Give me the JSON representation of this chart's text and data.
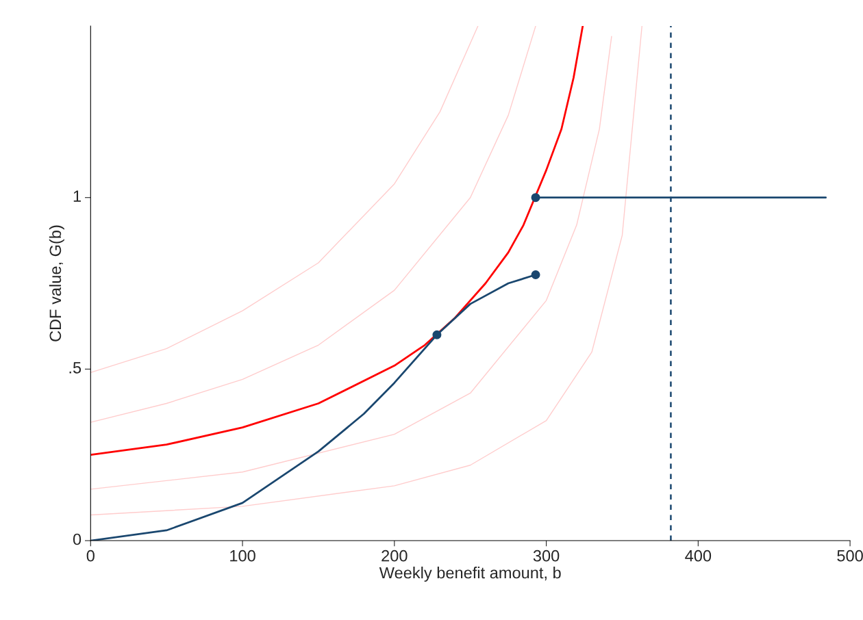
{
  "chart_data": {
    "type": "line",
    "xlabel": "Weekly benefit amount, b",
    "ylabel": "CDF value, G(b)",
    "xlim": [
      0,
      500
    ],
    "ylim": [
      0,
      1.5
    ],
    "xticks": [
      0,
      100,
      200,
      300,
      400,
      500
    ],
    "yticks": [
      0,
      {
        "value": 0.5,
        "label": ".5"
      },
      1
    ],
    "grid": false,
    "legend": false,
    "series": [
      {
        "color": "#ffcccc",
        "x": [
          0,
          50,
          100,
          150,
          200,
          230,
          255
        ],
        "values": [
          0.49,
          0.56,
          0.67,
          0.81,
          1.04,
          1.25,
          1.5
        ]
      },
      {
        "color": "#ffcccc",
        "x": [
          0,
          50,
          100,
          150,
          200,
          250,
          275,
          293
        ],
        "values": [
          0.345,
          0.4,
          0.47,
          0.57,
          0.73,
          1.0,
          1.24,
          1.5
        ]
      },
      {
        "color": "#ffcccc",
        "x": [
          0,
          100,
          200,
          250,
          300,
          320,
          335,
          343
        ],
        "values": [
          0.15,
          0.2,
          0.31,
          0.43,
          0.7,
          0.92,
          1.2,
          1.47
        ]
      },
      {
        "color": "#ffcccc",
        "x": [
          0,
          100,
          200,
          250,
          300,
          330,
          350,
          363
        ],
        "values": [
          0.075,
          0.1,
          0.16,
          0.22,
          0.35,
          0.55,
          0.89,
          1.5
        ]
      },
      {
        "color": "#ff0000",
        "x": [
          0,
          50,
          100,
          150,
          200,
          220,
          240,
          260,
          275,
          285,
          300,
          310,
          318,
          324
        ],
        "values": [
          0.25,
          0.28,
          0.33,
          0.4,
          0.51,
          0.57,
          0.65,
          0.75,
          0.84,
          0.92,
          1.08,
          1.2,
          1.35,
          1.5
        ]
      },
      {
        "color": "#1a476f",
        "x": [
          0,
          50,
          100,
          150,
          180,
          200,
          228,
          250,
          275,
          293
        ],
        "values": [
          0,
          0.03,
          0.11,
          0.26,
          0.37,
          0.46,
          0.6,
          0.69,
          0.75,
          0.775
        ]
      },
      {
        "color": "#1a476f",
        "x": [
          293,
          484
        ],
        "values": [
          1,
          1
        ]
      },
      {
        "type": "scatter",
        "marker": "circle",
        "color": "#1a476f",
        "x": [
          228,
          293,
          293
        ],
        "values": [
          0.6,
          1,
          0.775
        ]
      }
    ],
    "ref_lines": [
      {
        "axis": "x",
        "value": 382,
        "color": "#1a476f",
        "line_style": "dashed"
      }
    ]
  }
}
